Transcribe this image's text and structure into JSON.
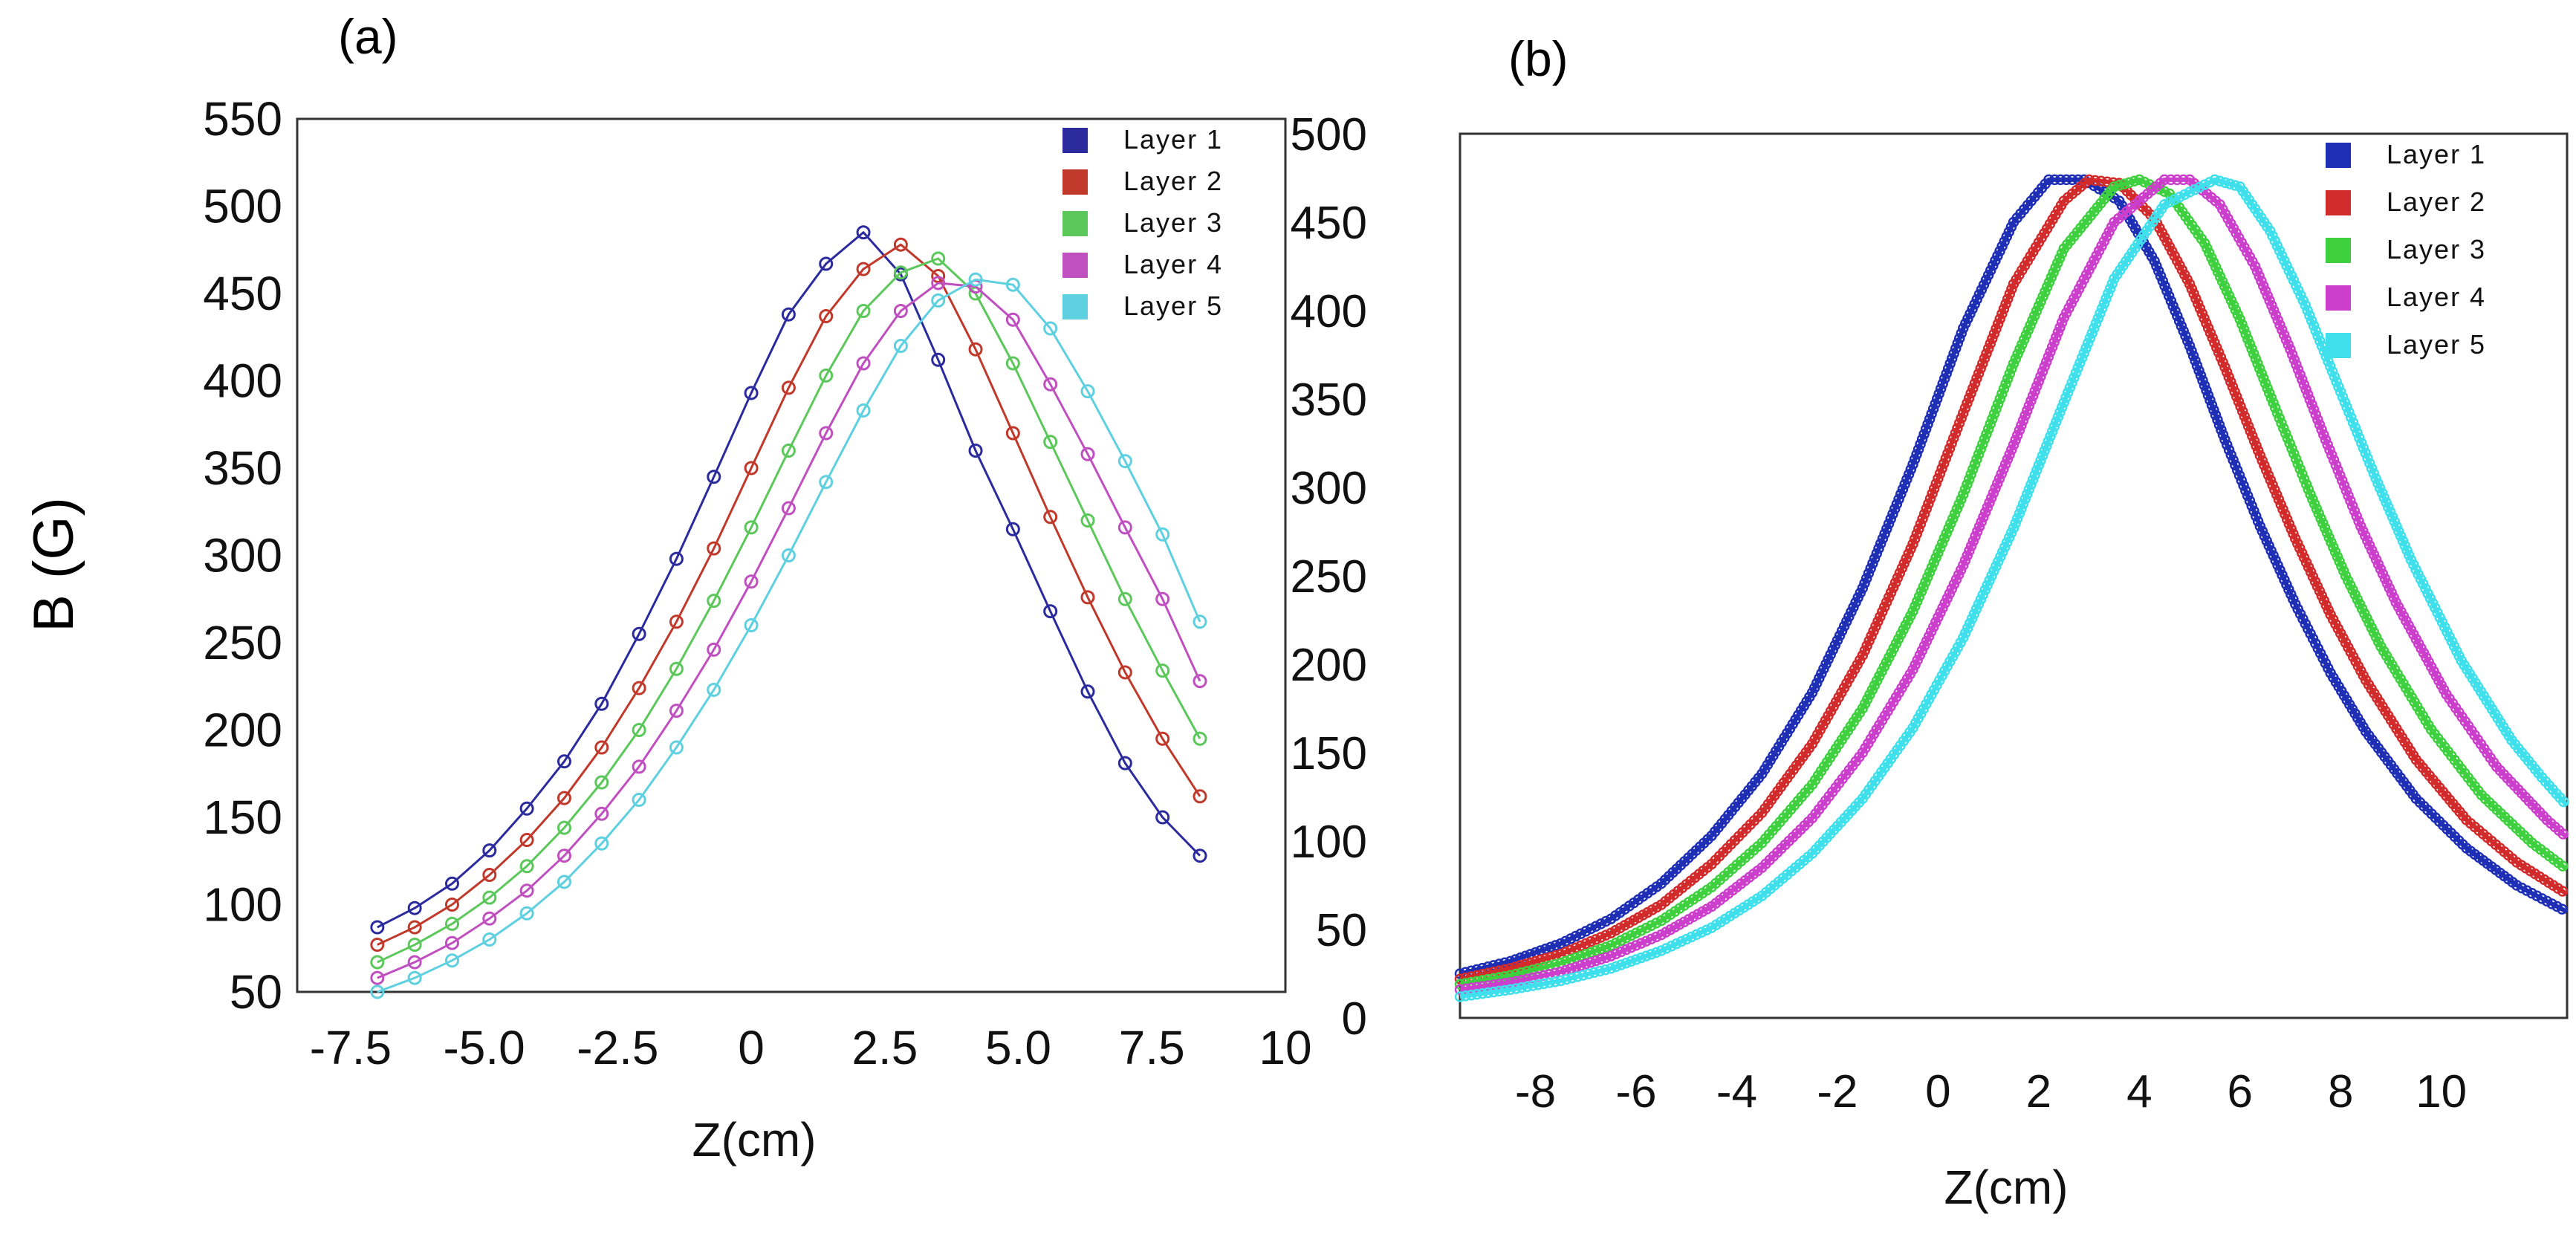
{
  "figure": {
    "ylabel_shared": "B (G)"
  },
  "chart_data": [
    {
      "type": "line",
      "panel": "(a)",
      "title": "",
      "xlabel": "Z(cm)",
      "ylabel": "B (G)",
      "xlim": [
        -8.5,
        10
      ],
      "ylim": [
        50,
        550
      ],
      "xticks": [
        "-7.5",
        "-5.0",
        "-2.5",
        "0",
        "2.5",
        "5.0",
        "7.5",
        "10"
      ],
      "yticks": [
        "50",
        "100",
        "150",
        "200",
        "250",
        "300",
        "350",
        "400",
        "450",
        "500",
        "550"
      ],
      "grid": false,
      "legend_position": "top-right",
      "series": [
        {
          "name": "Layer 1",
          "color": "#2b2b9e",
          "x": [
            -7,
            -6.3,
            -5.6,
            -4.9,
            -4.2,
            -3.5,
            -2.8,
            -2.1,
            -1.4,
            -0.7,
            0,
            0.7,
            1.4,
            2.1,
            2.8,
            3.5,
            4.2,
            4.9,
            5.6,
            6.3,
            7,
            7.7,
            8.4
          ],
          "y": [
            87,
            98,
            112,
            131,
            155,
            182,
            215,
            255,
            298,
            345,
            393,
            438,
            467,
            485,
            461,
            412,
            360,
            315,
            268,
            222,
            181,
            150,
            128
          ]
        },
        {
          "name": "Layer 2",
          "color": "#c0392b",
          "x": [
            -7,
            -6.3,
            -5.6,
            -4.9,
            -4.2,
            -3.5,
            -2.8,
            -2.1,
            -1.4,
            -0.7,
            0,
            0.7,
            1.4,
            2.1,
            2.8,
            3.5,
            4.2,
            4.9,
            5.6,
            6.3,
            7,
            7.7,
            8.4
          ],
          "y": [
            77,
            87,
            100,
            117,
            137,
            161,
            190,
            224,
            262,
            304,
            350,
            396,
            437,
            464,
            478,
            460,
            418,
            370,
            322,
            276,
            233,
            195,
            162
          ]
        },
        {
          "name": "Layer 3",
          "color": "#5cc85c",
          "x": [
            -7,
            -6.3,
            -5.6,
            -4.9,
            -4.2,
            -3.5,
            -2.8,
            -2.1,
            -1.4,
            -0.7,
            0,
            0.7,
            1.4,
            2.1,
            2.8,
            3.5,
            4.2,
            4.9,
            5.6,
            6.3,
            7,
            7.7,
            8.4
          ],
          "y": [
            67,
            77,
            89,
            104,
            122,
            144,
            170,
            200,
            235,
            274,
            316,
            360,
            403,
            440,
            462,
            470,
            450,
            410,
            365,
            320,
            275,
            234,
            195
          ]
        },
        {
          "name": "Layer 4",
          "color": "#c04fc0",
          "x": [
            -7,
            -6.3,
            -5.6,
            -4.9,
            -4.2,
            -3.5,
            -2.8,
            -2.1,
            -1.4,
            -0.7,
            0,
            0.7,
            1.4,
            2.1,
            2.8,
            3.5,
            4.2,
            4.9,
            5.6,
            6.3,
            7,
            7.7,
            8.4
          ],
          "y": [
            58,
            67,
            78,
            92,
            108,
            128,
            152,
            179,
            211,
            246,
            285,
            327,
            370,
            410,
            440,
            456,
            454,
            435,
            398,
            358,
            316,
            275,
            228
          ]
        },
        {
          "name": "Layer 5",
          "color": "#5fd0e0",
          "x": [
            -7,
            -6.3,
            -5.6,
            -4.9,
            -4.2,
            -3.5,
            -2.8,
            -2.1,
            -1.4,
            -0.7,
            0,
            0.7,
            1.4,
            2.1,
            2.8,
            3.5,
            4.2,
            4.9,
            5.6,
            6.3,
            7,
            7.7,
            8.4
          ],
          "y": [
            50,
            58,
            68,
            80,
            95,
            113,
            135,
            160,
            190,
            223,
            260,
            300,
            342,
            383,
            420,
            446,
            458,
            455,
            430,
            394,
            354,
            312,
            262
          ]
        }
      ]
    },
    {
      "type": "line",
      "panel": "(b)",
      "title": "",
      "xlabel": "Z(cm)",
      "ylabel": "",
      "xlim": [
        -9.5,
        12.5
      ],
      "ylim": [
        0,
        500
      ],
      "xticks": [
        "-8",
        "-6",
        "-4",
        "-2",
        "0",
        "2",
        "4",
        "6",
        "8",
        "10"
      ],
      "yticks": [
        "0",
        "50",
        "100",
        "150",
        "200",
        "250",
        "300",
        "350",
        "400",
        "450",
        "500"
      ],
      "grid": false,
      "legend_position": "top-right",
      "series": [
        {
          "name": "Layer 1",
          "color": "#1f2fb5",
          "x": [
            -9.5,
            -8.5,
            -7.5,
            -6.5,
            -5.5,
            -4.5,
            -3.5,
            -2.5,
            -1.5,
            -0.5,
            0.5,
            1.5,
            2.2,
            2.9,
            3.6,
            4.3,
            5.0,
            5.7,
            6.4,
            7.1,
            7.8,
            8.5,
            9.5,
            10.5,
            11.5,
            12.5
          ],
          "y": [
            25,
            32,
            42,
            56,
            76,
            103,
            138,
            184,
            243,
            313,
            390,
            450,
            474,
            474,
            462,
            428,
            380,
            327,
            278,
            234,
            195,
            162,
            124,
            96,
            75,
            60
          ]
        },
        {
          "name": "Layer 2",
          "color": "#d22b2b",
          "x": [
            -9.5,
            -8.5,
            -7.5,
            -6.5,
            -5.5,
            -4.5,
            -3.5,
            -2.5,
            -1.5,
            -0.5,
            0.5,
            1.5,
            2.5,
            3.0,
            3.6,
            4.3,
            5.0,
            5.7,
            6.4,
            7.1,
            7.8,
            8.5,
            9.5,
            10.5,
            11.5,
            12.5
          ],
          "y": [
            22,
            28,
            36,
            48,
            64,
            87,
            116,
            155,
            205,
            268,
            342,
            415,
            462,
            474,
            472,
            452,
            415,
            368,
            318,
            271,
            228,
            191,
            146,
            112,
            88,
            70
          ]
        },
        {
          "name": "Layer 3",
          "color": "#3fd03f",
          "x": [
            -9.5,
            -8.5,
            -7.5,
            -6.5,
            -5.5,
            -4.5,
            -3.5,
            -2.5,
            -1.5,
            -0.5,
            0.5,
            1.5,
            2.5,
            3.5,
            4.0,
            4.6,
            5.3,
            6.0,
            6.7,
            7.4,
            8.1,
            8.8,
            9.8,
            10.8,
            11.8,
            12.5
          ],
          "y": [
            19,
            24,
            31,
            41,
            55,
            74,
            99,
            132,
            175,
            230,
            296,
            370,
            435,
            470,
            474,
            466,
            438,
            395,
            345,
            296,
            250,
            210,
            163,
            126,
            99,
            84
          ]
        },
        {
          "name": "Layer 4",
          "color": "#cc3fcc",
          "x": [
            -9.5,
            -8.5,
            -7.5,
            -6.5,
            -5.5,
            -4.5,
            -3.5,
            -2.5,
            -1.5,
            -0.5,
            0.5,
            1.5,
            2.5,
            3.5,
            4.5,
            5.0,
            5.6,
            6.3,
            7.0,
            7.7,
            8.4,
            9.1,
            10.1,
            11.1,
            12.1,
            12.5
          ],
          "y": [
            16,
            20,
            26,
            35,
            47,
            63,
            85,
            113,
            150,
            197,
            256,
            324,
            396,
            450,
            474,
            474,
            460,
            425,
            378,
            327,
            278,
            235,
            183,
            142,
            112,
            102
          ]
        },
        {
          "name": "Layer 5",
          "color": "#3fe0ec",
          "x": [
            -9.5,
            -8.5,
            -7.5,
            -6.5,
            -5.5,
            -4.5,
            -3.5,
            -2.5,
            -1.5,
            -0.5,
            0.5,
            1.5,
            2.5,
            3.5,
            4.5,
            5.5,
            6.0,
            6.6,
            7.3,
            8.0,
            8.7,
            9.4,
            10.4,
            11.4,
            12.0,
            12.5
          ],
          "y": [
            12,
            16,
            21,
            28,
            38,
            51,
            69,
            93,
            124,
            164,
            215,
            277,
            348,
            418,
            460,
            474,
            470,
            445,
            403,
            354,
            305,
            259,
            202,
            157,
            136,
            120
          ]
        }
      ]
    }
  ],
  "colors": {
    "frame": "#333333",
    "text": "#111111"
  }
}
